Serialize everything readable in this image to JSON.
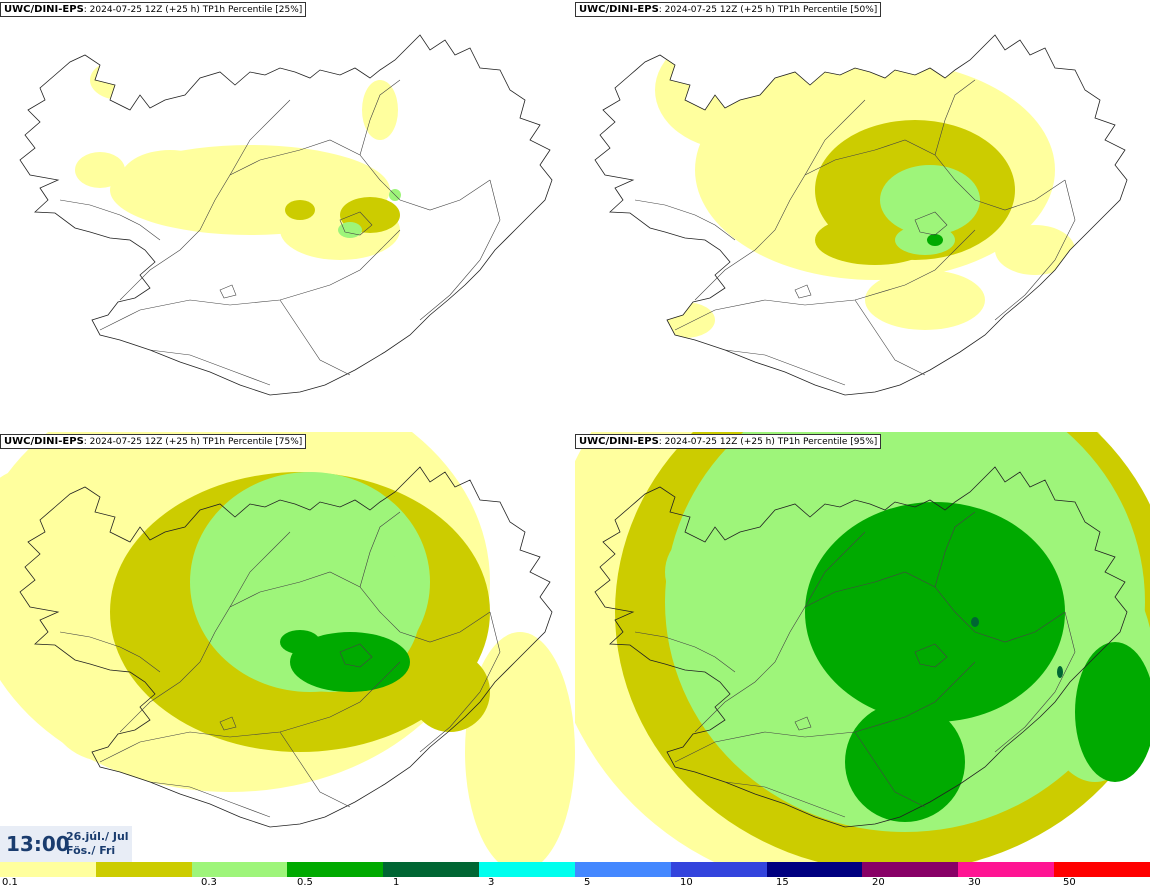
{
  "panels": [
    {
      "model": "UWC/DINI-EPS",
      "run": ": 2024-07-25 12Z (+25 h)",
      "param": "TP1h Percentile [25%]",
      "level": 1
    },
    {
      "model": "UWC/DINI-EPS",
      "run": ": 2024-07-25 12Z (+25 h)",
      "param": "TP1h Percentile [50%]",
      "level": 2
    },
    {
      "model": "UWC/DINI-EPS",
      "run": ": 2024-07-25 12Z (+25 h)",
      "param": "TP1h Percentile [75%]",
      "level": 3
    },
    {
      "model": "UWC/DINI-EPS",
      "run": ": 2024-07-25 12Z (+25 h)",
      "param": "TP1h Percentile [95%]",
      "level": 4
    }
  ],
  "valid": {
    "time": "13:00",
    "date_line1": "26.júl./ Jul",
    "date_line2": "Fös./ Fri"
  },
  "legend": {
    "colors": [
      "#ffff9e",
      "#cccc00",
      "#9ef57a",
      "#00aa00",
      "#006633",
      "#00ffee",
      "#4488ff",
      "#3344dd",
      "#000080",
      "#880066",
      "#ff1493",
      "#ff0000"
    ],
    "labels": [
      "0.1",
      "0.3",
      "0.5",
      "1",
      "3",
      "5",
      "10",
      "15",
      "20",
      "30",
      "50"
    ]
  }
}
